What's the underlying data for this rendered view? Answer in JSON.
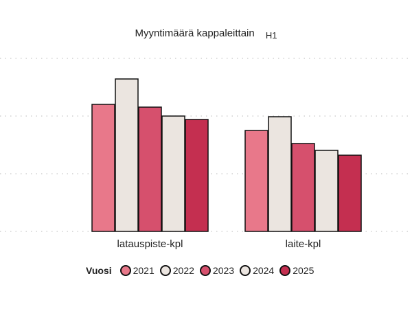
{
  "chart_data": {
    "type": "bar",
    "title": "Myyntimäärä kappaleittain",
    "subtitle": "H1",
    "categories": [
      "latauspiste-kpl",
      "laite-kpl"
    ],
    "legend_title": "Vuosi",
    "legend_position": "bottom",
    "series": [
      {
        "name": "2021",
        "color": "#e8788a",
        "values": [
          185,
          147
        ]
      },
      {
        "name": "2022",
        "color": "#ebe5e0",
        "values": [
          222,
          167
        ]
      },
      {
        "name": "2023",
        "color": "#d6506d",
        "values": [
          181,
          128
        ]
      },
      {
        "name": "2024",
        "color": "#ebe5e0",
        "values": [
          168,
          118
        ]
      },
      {
        "name": "2025",
        "color": "#c42f50",
        "values": [
          163,
          111
        ]
      }
    ],
    "ylim": [
      0,
      250
    ],
    "gridlines": [
      0,
      84,
      168,
      252
    ],
    "grid": true,
    "xlabel": "",
    "ylabel": ""
  }
}
